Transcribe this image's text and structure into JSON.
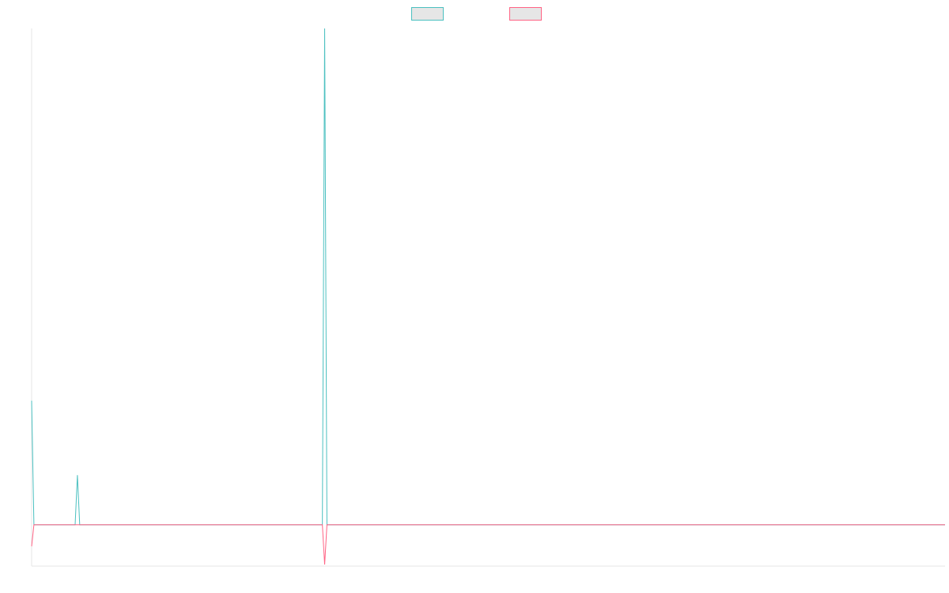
{
  "chart_data": {
    "type": "line",
    "title": "",
    "xlabel": "",
    "ylabel": "",
    "legend_position": "top-center",
    "grid": false,
    "x_count": 400,
    "y_range": [
      -0.05,
      0.6
    ],
    "series": [
      {
        "name": "",
        "color": "#4bc0c0",
        "legend_fill": "#e6e6e6",
        "baseline": 0,
        "points": [
          {
            "i": 0,
            "y": 0.15
          },
          {
            "i": 1,
            "y": 0
          },
          {
            "i": 19,
            "y": 0
          },
          {
            "i": 20,
            "y": 0.06
          },
          {
            "i": 21,
            "y": 0
          },
          {
            "i": 127,
            "y": 0
          },
          {
            "i": 128,
            "y": 0.6
          },
          {
            "i": 129,
            "y": 0
          },
          {
            "i": 399,
            "y": 0
          }
        ]
      },
      {
        "name": "",
        "color": "#ff6384",
        "legend_fill": "#e6e6e6",
        "baseline": 0,
        "points": [
          {
            "i": 0,
            "y": -0.026
          },
          {
            "i": 1,
            "y": 0
          },
          {
            "i": 127,
            "y": 0
          },
          {
            "i": 128,
            "y": -0.048
          },
          {
            "i": 129,
            "y": 0
          },
          {
            "i": 399,
            "y": 0
          }
        ]
      }
    ]
  }
}
